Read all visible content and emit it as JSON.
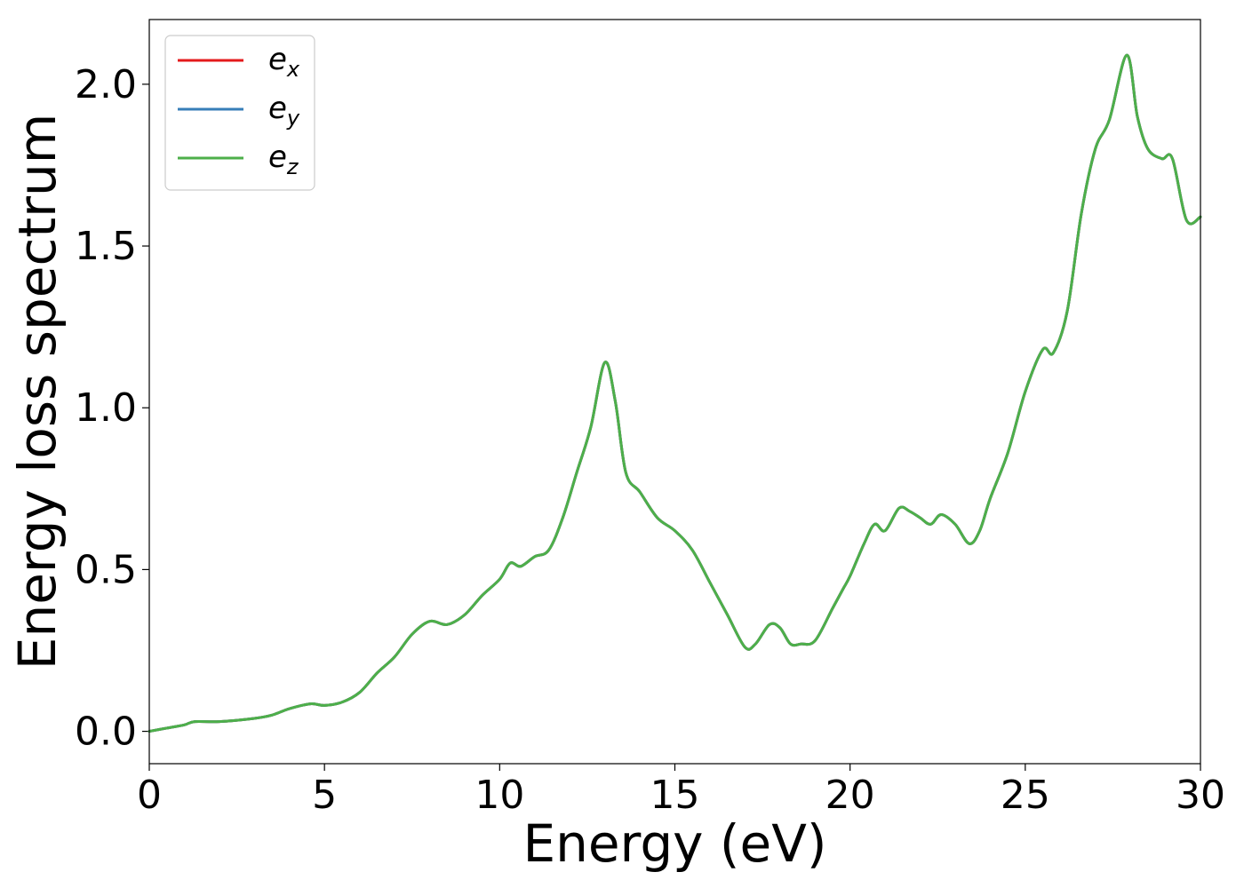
{
  "chart_data": {
    "type": "line",
    "title": "",
    "xlabel": "Energy (eV)",
    "ylabel": "Energy loss spectrum",
    "xlim": [
      0,
      30
    ],
    "ylim": [
      -0.1,
      2.2
    ],
    "xticks": [
      0,
      5,
      10,
      15,
      20,
      25,
      30
    ],
    "xtick_labels": [
      "0",
      "5",
      "10",
      "15",
      "20",
      "25",
      "30"
    ],
    "yticks": [
      0.0,
      0.5,
      1.0,
      1.5,
      2.0
    ],
    "ytick_labels": [
      "0.0",
      "0.5",
      "1.0",
      "1.5",
      "2.0"
    ],
    "grid": false,
    "legend_position": "top-left",
    "series": [
      {
        "name": "e_x",
        "label_base": "e",
        "label_sub": "x",
        "color": "#e41a1c",
        "x": [
          0,
          0.5,
          1.0,
          1.3,
          2.0,
          3.0,
          3.5,
          4.0,
          4.6,
          5.0,
          5.5,
          6.0,
          6.5,
          7.0,
          7.5,
          8.0,
          8.5,
          9.0,
          9.5,
          10.0,
          10.3,
          10.6,
          11.0,
          11.4,
          11.8,
          12.2,
          12.6,
          13.0,
          13.3,
          13.6,
          14.0,
          14.5,
          15.0,
          15.5,
          16.0,
          16.5,
          17.0,
          17.3,
          17.7,
          18.0,
          18.3,
          18.6,
          19.0,
          19.5,
          19.8,
          20.0,
          20.4,
          20.7,
          21.0,
          21.4,
          21.7,
          22.0,
          22.3,
          22.6,
          23.0,
          23.4,
          23.7,
          24.0,
          24.5,
          25.0,
          25.5,
          25.8,
          26.2,
          26.6,
          27.0,
          27.4,
          27.9,
          28.2,
          28.5,
          28.9,
          29.2,
          29.6,
          30.0
        ],
        "y": [
          0.0,
          0.01,
          0.02,
          0.03,
          0.03,
          0.04,
          0.05,
          0.07,
          0.085,
          0.08,
          0.09,
          0.12,
          0.18,
          0.23,
          0.3,
          0.34,
          0.33,
          0.36,
          0.42,
          0.47,
          0.52,
          0.51,
          0.54,
          0.56,
          0.66,
          0.8,
          0.94,
          1.14,
          1.02,
          0.8,
          0.74,
          0.66,
          0.62,
          0.56,
          0.46,
          0.36,
          0.26,
          0.27,
          0.33,
          0.32,
          0.27,
          0.27,
          0.28,
          0.38,
          0.44,
          0.48,
          0.58,
          0.64,
          0.62,
          0.69,
          0.68,
          0.66,
          0.64,
          0.67,
          0.64,
          0.58,
          0.62,
          0.72,
          0.86,
          1.05,
          1.18,
          1.17,
          1.3,
          1.6,
          1.8,
          1.89,
          2.09,
          1.9,
          1.8,
          1.77,
          1.77,
          1.58,
          1.59
        ]
      },
      {
        "name": "e_y",
        "label_base": "e",
        "label_sub": "y",
        "color": "#377eb8",
        "x": [
          0,
          0.5,
          1.0,
          1.3,
          2.0,
          3.0,
          3.5,
          4.0,
          4.6,
          5.0,
          5.5,
          6.0,
          6.5,
          7.0,
          7.5,
          8.0,
          8.5,
          9.0,
          9.5,
          10.0,
          10.3,
          10.6,
          11.0,
          11.4,
          11.8,
          12.2,
          12.6,
          13.0,
          13.3,
          13.6,
          14.0,
          14.5,
          15.0,
          15.5,
          16.0,
          16.5,
          17.0,
          17.3,
          17.7,
          18.0,
          18.3,
          18.6,
          19.0,
          19.5,
          19.8,
          20.0,
          20.4,
          20.7,
          21.0,
          21.4,
          21.7,
          22.0,
          22.3,
          22.6,
          23.0,
          23.4,
          23.7,
          24.0,
          24.5,
          25.0,
          25.5,
          25.8,
          26.2,
          26.6,
          27.0,
          27.4,
          27.9,
          28.2,
          28.5,
          28.9,
          29.2,
          29.6,
          30.0
        ],
        "y": [
          0.0,
          0.01,
          0.02,
          0.03,
          0.03,
          0.04,
          0.05,
          0.07,
          0.085,
          0.08,
          0.09,
          0.12,
          0.18,
          0.23,
          0.3,
          0.34,
          0.33,
          0.36,
          0.42,
          0.47,
          0.52,
          0.51,
          0.54,
          0.56,
          0.66,
          0.8,
          0.94,
          1.14,
          1.02,
          0.8,
          0.74,
          0.66,
          0.62,
          0.56,
          0.46,
          0.36,
          0.26,
          0.27,
          0.33,
          0.32,
          0.27,
          0.27,
          0.28,
          0.38,
          0.44,
          0.48,
          0.58,
          0.64,
          0.62,
          0.69,
          0.68,
          0.66,
          0.64,
          0.67,
          0.64,
          0.58,
          0.62,
          0.72,
          0.86,
          1.05,
          1.18,
          1.17,
          1.3,
          1.6,
          1.8,
          1.89,
          2.09,
          1.9,
          1.8,
          1.77,
          1.77,
          1.58,
          1.59
        ]
      },
      {
        "name": "e_z",
        "label_base": "e",
        "label_sub": "z",
        "color": "#4daf4a",
        "x": [
          0,
          0.5,
          1.0,
          1.3,
          2.0,
          3.0,
          3.5,
          4.0,
          4.6,
          5.0,
          5.5,
          6.0,
          6.5,
          7.0,
          7.5,
          8.0,
          8.5,
          9.0,
          9.5,
          10.0,
          10.3,
          10.6,
          11.0,
          11.4,
          11.8,
          12.2,
          12.6,
          13.0,
          13.3,
          13.6,
          14.0,
          14.5,
          15.0,
          15.5,
          16.0,
          16.5,
          17.0,
          17.3,
          17.7,
          18.0,
          18.3,
          18.6,
          19.0,
          19.5,
          19.8,
          20.0,
          20.4,
          20.7,
          21.0,
          21.4,
          21.7,
          22.0,
          22.3,
          22.6,
          23.0,
          23.4,
          23.7,
          24.0,
          24.5,
          25.0,
          25.5,
          25.8,
          26.2,
          26.6,
          27.0,
          27.4,
          27.9,
          28.2,
          28.5,
          28.9,
          29.2,
          29.6,
          30.0
        ],
        "y": [
          0.0,
          0.01,
          0.02,
          0.03,
          0.03,
          0.04,
          0.05,
          0.07,
          0.085,
          0.08,
          0.09,
          0.12,
          0.18,
          0.23,
          0.3,
          0.34,
          0.33,
          0.36,
          0.42,
          0.47,
          0.52,
          0.51,
          0.54,
          0.56,
          0.66,
          0.8,
          0.94,
          1.14,
          1.02,
          0.8,
          0.74,
          0.66,
          0.62,
          0.56,
          0.46,
          0.36,
          0.26,
          0.27,
          0.33,
          0.32,
          0.27,
          0.27,
          0.28,
          0.38,
          0.44,
          0.48,
          0.58,
          0.64,
          0.62,
          0.69,
          0.68,
          0.66,
          0.64,
          0.67,
          0.64,
          0.58,
          0.62,
          0.72,
          0.86,
          1.05,
          1.18,
          1.17,
          1.3,
          1.6,
          1.8,
          1.89,
          2.09,
          1.9,
          1.8,
          1.77,
          1.77,
          1.58,
          1.59
        ]
      }
    ]
  }
}
